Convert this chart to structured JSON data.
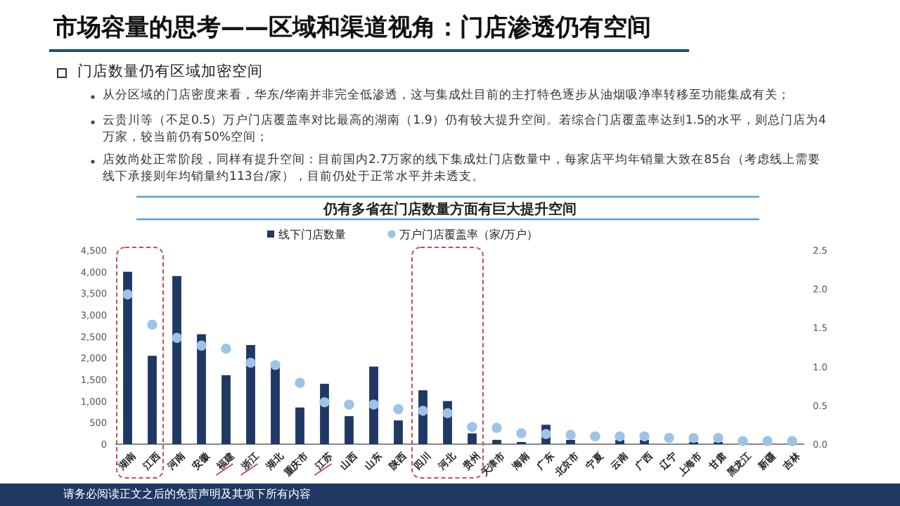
{
  "chart_data": {
    "type": "bar",
    "title": "市场容量的思考——区域和渠道视角：门店渗透仍有空间",
    "subtitle": "仍有多省在门店数量方面有巨大提升空间",
    "annotations": [
      "门店数量仍有区域加密空间",
      "从分区域的门店密度来看，华东/华南并非完全低渗透，这与集成灶目前的主打特色逐步从油烟吸净率转移至功能集成有关；",
      "云贵川等（不足0.5）万户门店覆盖率对比最高的湖南（1.9）仍有较大提升空间。若综合门店覆盖率达到1.5的水平，则总门店为4万家，较当前仍有50%空间；",
      "店效尚处正常阶段，同样有提升空间：目前国内2.7万家的线下集成灶门店数量中，每家店平均年销量大致在85台（考虑线上需要线下承接则年均销量约113台/家），目前仍处于正常水平并未透支。",
      "请务必阅读正文之后的免责声明及其项下所有内容"
    ],
    "categories": [
      "湖南",
      "江西",
      "河南",
      "安徽",
      "福建",
      "浙江",
      "湖北",
      "重庆市",
      "江苏",
      "山西",
      "山东",
      "陕西",
      "四川",
      "河北",
      "贵州",
      "天津市",
      "海南",
      "广东",
      "北京市",
      "宁夏",
      "云南",
      "广西",
      "辽宁",
      "上海市",
      "甘肃",
      "黑龙江",
      "新疆",
      "吉林"
    ],
    "series": [
      {
        "name": "线下门店数量",
        "color": "#1f3864",
        "values": [
          4000,
          2050,
          3900,
          2550,
          1600,
          2300,
          1850,
          850,
          1400,
          650,
          1800,
          550,
          1250,
          1000,
          250,
          100,
          50,
          450,
          100,
          0,
          100,
          100,
          null,
          50,
          50,
          0,
          0,
          0
        ]
      },
      {
        "name": "万户门店覆盖率（家/万户）",
        "type": "scatter",
        "axis": "y2",
        "color": "#9dc3e6",
        "values": [
          1.93,
          1.54,
          1.37,
          1.27,
          1.23,
          1.05,
          1.02,
          0.79,
          0.54,
          0.51,
          0.51,
          0.45,
          0.43,
          0.4,
          0.22,
          0.21,
          0.14,
          0.13,
          0.12,
          0.1,
          0.1,
          0.1,
          0.08,
          0.08,
          0.08,
          0.04,
          0.04,
          0.04
        ]
      }
    ],
    "ylim": [
      0,
      4500
    ],
    "yticks": [
      0,
      {
        "value": 500,
        "label": "500"
      },
      {
        "value": 1000,
        "label": "1,000"
      },
      {
        "value": 1500,
        "label": "1,500"
      },
      {
        "value": 2000,
        "label": "2,000"
      },
      {
        "value": 2500,
        "label": "2,500"
      },
      {
        "value": 3000,
        "label": "3,000"
      },
      {
        "value": 3500,
        "label": "3,500"
      },
      {
        "value": 4000,
        "label": "4,000"
      },
      {
        "value": 4500,
        "label": "4,500"
      }
    ],
    "y2lim": [
      0,
      2.5
    ],
    "y2ticks": [
      {
        "value": 0,
        "label": "0.0"
      },
      {
        "value": 0.5,
        "label": "0.5"
      },
      {
        "value": 1,
        "label": "1.0"
      },
      {
        "value": 1.5,
        "label": "1.5"
      },
      {
        "value": 2,
        "label": "2.0"
      },
      {
        "value": 2.5,
        "label": "2.5"
      }
    ],
    "legend": "top",
    "grid": false,
    "marker": "circle"
  }
}
